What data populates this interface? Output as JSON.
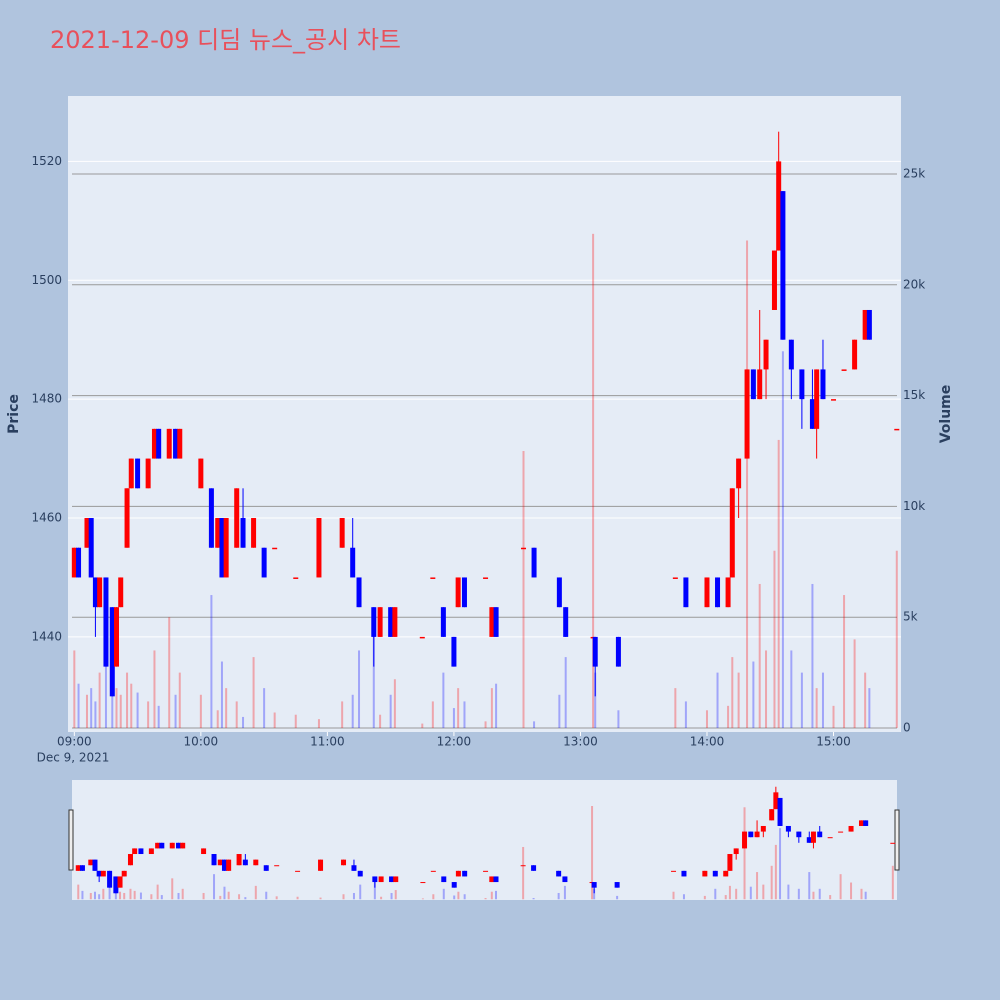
{
  "chart_data": {
    "type": "candlestick",
    "title": "2021-12-09 디딤 뉴스_공시 차트",
    "y_label": "Price",
    "y2_label": "Volume",
    "x_sublabel": "Dec 9, 2021",
    "increasing_color": "#ff0000",
    "decreasing_color": "#0000ff",
    "xlim": [
      "2021-12-09 08:57",
      "2021-12-09 15:32"
    ],
    "xticks": [
      {
        "value": "2021-12-09 09:00",
        "label": "09:00"
      },
      {
        "value": "2021-12-09 10:00",
        "label": "10:00"
      },
      {
        "value": "2021-12-09 11:00",
        "label": "11:00"
      },
      {
        "value": "2021-12-09 12:00",
        "label": "12:00"
      },
      {
        "value": "2021-12-09 13:00",
        "label": "13:00"
      },
      {
        "value": "2021-12-09 14:00",
        "label": "14:00"
      },
      {
        "value": "2021-12-09 15:00",
        "label": "15:00"
      }
    ],
    "ylim": [
      1424,
      1531
    ],
    "yticks": [
      1440,
      1460,
      1480,
      1500,
      1520
    ],
    "y2lim": [
      -180,
      28520
    ],
    "y2ticks": [
      0,
      {
        "value": 5000,
        "label": "5k"
      },
      {
        "value": 10000,
        "label": "10k"
      },
      {
        "value": 15000,
        "label": "15k"
      },
      {
        "value": 20000,
        "label": "20k"
      },
      {
        "value": 25000,
        "label": "25k"
      }
    ],
    "x": [
      "2021-12-09 09:00",
      "2021-12-09 09:02",
      "2021-12-09 09:06",
      "2021-12-09 09:08",
      "2021-12-09 09:10",
      "2021-12-09 09:12",
      "2021-12-09 09:15",
      "2021-12-09 09:18",
      "2021-12-09 09:20",
      "2021-12-09 09:22",
      "2021-12-09 09:25",
      "2021-12-09 09:27",
      "2021-12-09 09:30",
      "2021-12-09 09:35",
      "2021-12-09 09:38",
      "2021-12-09 09:40",
      "2021-12-09 09:45",
      "2021-12-09 09:48",
      "2021-12-09 09:50",
      "2021-12-09 10:00",
      "2021-12-09 10:05",
      "2021-12-09 10:08",
      "2021-12-09 10:10",
      "2021-12-09 10:12",
      "2021-12-09 10:17",
      "2021-12-09 10:20",
      "2021-12-09 10:25",
      "2021-12-09 10:30",
      "2021-12-09 10:35",
      "2021-12-09 10:45",
      "2021-12-09 10:56",
      "2021-12-09 11:07",
      "2021-12-09 11:12",
      "2021-12-09 11:15",
      "2021-12-09 11:22",
      "2021-12-09 11:25",
      "2021-12-09 11:30",
      "2021-12-09 11:32",
      "2021-12-09 11:45",
      "2021-12-09 11:50",
      "2021-12-09 11:55",
      "2021-12-09 12:00",
      "2021-12-09 12:02",
      "2021-12-09 12:05",
      "2021-12-09 12:15",
      "2021-12-09 12:18",
      "2021-12-09 12:20",
      "2021-12-09 12:33",
      "2021-12-09 12:38",
      "2021-12-09 12:50",
      "2021-12-09 12:53",
      "2021-12-09 13:06",
      "2021-12-09 13:07",
      "2021-12-09 13:18",
      "2021-12-09 13:45",
      "2021-12-09 13:50",
      "2021-12-09 14:00",
      "2021-12-09 14:05",
      "2021-12-09 14:10",
      "2021-12-09 14:12",
      "2021-12-09 14:15",
      "2021-12-09 14:19",
      "2021-12-09 14:22",
      "2021-12-09 14:25",
      "2021-12-09 14:28",
      "2021-12-09 14:32",
      "2021-12-09 14:34",
      "2021-12-09 14:36",
      "2021-12-09 14:40",
      "2021-12-09 14:45",
      "2021-12-09 14:50",
      "2021-12-09 14:52",
      "2021-12-09 14:55",
      "2021-12-09 15:00",
      "2021-12-09 15:05",
      "2021-12-09 15:10",
      "2021-12-09 15:15",
      "2021-12-09 15:17",
      "2021-12-09 15:30"
    ],
    "open": [
      1450,
      1455,
      1455,
      1460,
      1450,
      1445,
      1450,
      1445,
      1435,
      1445,
      1455,
      1465,
      1470,
      1465,
      1470,
      1475,
      1470,
      1475,
      1470,
      1465,
      1465,
      1455,
      1460,
      1450,
      1455,
      1460,
      1455,
      1455,
      1455,
      1450,
      1450,
      1455,
      1455,
      1450,
      1445,
      1440,
      1445,
      1440,
      1440,
      1450,
      1445,
      1440,
      1445,
      1450,
      1450,
      1440,
      1445,
      1455,
      1455,
      1450,
      1445,
      1440,
      1440,
      1440,
      1450,
      1450,
      1445,
      1450,
      1445,
      1450,
      1465,
      1470,
      1485,
      1480,
      1485,
      1495,
      1505,
      1515,
      1490,
      1485,
      1480,
      1475,
      1485,
      1480,
      1485,
      1485,
      1490,
      1495,
      1475
    ],
    "high": [
      1455,
      1455,
      1460,
      1460,
      1450,
      1450,
      1450,
      1445,
      1445,
      1450,
      1465,
      1470,
      1470,
      1470,
      1475,
      1475,
      1475,
      1475,
      1475,
      1470,
      1465,
      1460,
      1460,
      1460,
      1465,
      1465,
      1460,
      1455,
      1455,
      1450,
      1460,
      1460,
      1460,
      1450,
      1445,
      1445,
      1445,
      1445,
      1440,
      1450,
      1445,
      1440,
      1450,
      1450,
      1450,
      1445,
      1445,
      1455,
      1455,
      1450,
      1445,
      1440,
      1440,
      1440,
      1450,
      1450,
      1450,
      1450,
      1450,
      1465,
      1470,
      1485,
      1485,
      1495,
      1490,
      1505,
      1525,
      1515,
      1490,
      1485,
      1485,
      1485,
      1490,
      1480,
      1485,
      1490,
      1495,
      1495,
      1475
    ],
    "low": [
      1450,
      1450,
      1455,
      1450,
      1440,
      1445,
      1435,
      1430,
      1435,
      1445,
      1455,
      1465,
      1465,
      1465,
      1470,
      1470,
      1470,
      1470,
      1470,
      1465,
      1455,
      1455,
      1450,
      1450,
      1455,
      1455,
      1455,
      1450,
      1455,
      1450,
      1450,
      1455,
      1450,
      1445,
      1435,
      1440,
      1440,
      1440,
      1440,
      1450,
      1440,
      1435,
      1445,
      1445,
      1450,
      1440,
      1440,
      1455,
      1450,
      1445,
      1440,
      1440,
      1430,
      1435,
      1450,
      1445,
      1445,
      1445,
      1445,
      1450,
      1460,
      1470,
      1480,
      1480,
      1480,
      1495,
      1505,
      1490,
      1480,
      1475,
      1475,
      1470,
      1480,
      1480,
      1485,
      1485,
      1490,
      1490,
      1475
    ],
    "close": [
      1455,
      1450,
      1460,
      1450,
      1445,
      1450,
      1435,
      1430,
      1445,
      1450,
      1465,
      1470,
      1465,
      1470,
      1475,
      1470,
      1475,
      1470,
      1475,
      1470,
      1455,
      1460,
      1450,
      1460,
      1465,
      1455,
      1460,
      1450,
      1455,
      1450,
      1460,
      1460,
      1450,
      1445,
      1440,
      1445,
      1440,
      1445,
      1440,
      1450,
      1440,
      1435,
      1450,
      1445,
      1450,
      1445,
      1440,
      1455,
      1450,
      1445,
      1440,
      1440,
      1435,
      1435,
      1450,
      1445,
      1450,
      1445,
      1450,
      1465,
      1470,
      1485,
      1480,
      1485,
      1490,
      1505,
      1520,
      1490,
      1485,
      1480,
      1475,
      1485,
      1480,
      1480,
      1485,
      1490,
      1495,
      1490,
      1475
    ],
    "volume": [
      3500,
      2000,
      1500,
      1800,
      1200,
      2500,
      3000,
      2200,
      1800,
      1500,
      2500,
      2000,
      1600,
      1200,
      3500,
      1000,
      5000,
      1500,
      2500,
      1500,
      6000,
      800,
      3000,
      1800,
      1200,
      500,
      3200,
      1800,
      700,
      600,
      400,
      1200,
      1500,
      3500,
      5000,
      600,
      1500,
      2200,
      200,
      1200,
      2500,
      900,
      1800,
      1200,
      300,
      1800,
      2000,
      12500,
      300,
      1500,
      3200,
      22300,
      2500,
      800,
      1800,
      1200,
      800,
      2500,
      1000,
      3200,
      2500,
      22000,
      3000,
      6500,
      3500,
      8000,
      13000,
      17000,
      3500,
      2500,
      6500,
      1800,
      2500,
      1000,
      6000,
      4000,
      2500,
      1800,
      8000
    ]
  }
}
